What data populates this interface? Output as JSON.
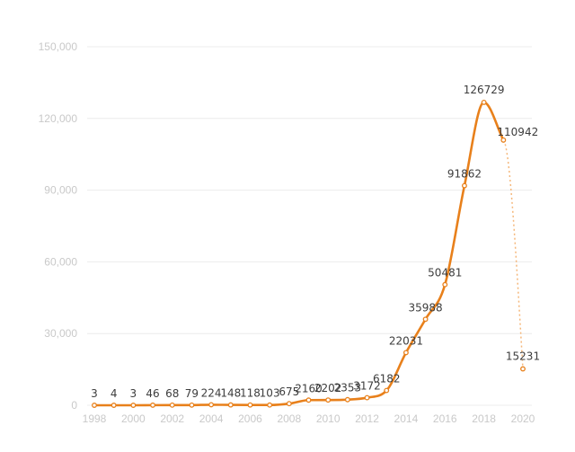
{
  "chart_data": {
    "type": "line",
    "title": "",
    "xlabel": "",
    "ylabel": "",
    "x_ticks": [
      "1998",
      "2000",
      "2002",
      "2004",
      "2006",
      "2008",
      "2010",
      "2012",
      "2014",
      "2016",
      "2018",
      "2020"
    ],
    "y_ticks": [
      "0",
      "30,000",
      "60,000",
      "90,000",
      "120,000",
      "150,000"
    ],
    "xlim": [
      1998,
      2020
    ],
    "ylim": [
      0,
      150000
    ],
    "grid": true,
    "colors": {
      "line": "#e8801b",
      "projection": "#f5b77a",
      "point_fill": "#ffffff"
    },
    "series": [
      {
        "name": "series",
        "x": [
          1998,
          1999,
          2000,
          2001,
          2002,
          2003,
          2004,
          2005,
          2006,
          2007,
          2008,
          2009,
          2010,
          2011,
          2012,
          2013,
          2014,
          2015,
          2016,
          2017,
          2018,
          2019
        ],
        "values": [
          3,
          4,
          3,
          46,
          68,
          79,
          224,
          148,
          118,
          103,
          675,
          2160,
          2202,
          2353,
          3172,
          6182,
          22031,
          35988,
          50481,
          91862,
          126729,
          110942
        ],
        "labels": [
          "3",
          "4",
          "3",
          "46",
          "68",
          "79",
          "224",
          "148",
          "118",
          "103",
          "675",
          "2160",
          "2202",
          "2353",
          "3172",
          "6182",
          "22031",
          "35988",
          "50481",
          "91862",
          "126729",
          "110942"
        ]
      }
    ],
    "projection": {
      "x": 2020,
      "value": 15231,
      "label": "15231"
    }
  }
}
